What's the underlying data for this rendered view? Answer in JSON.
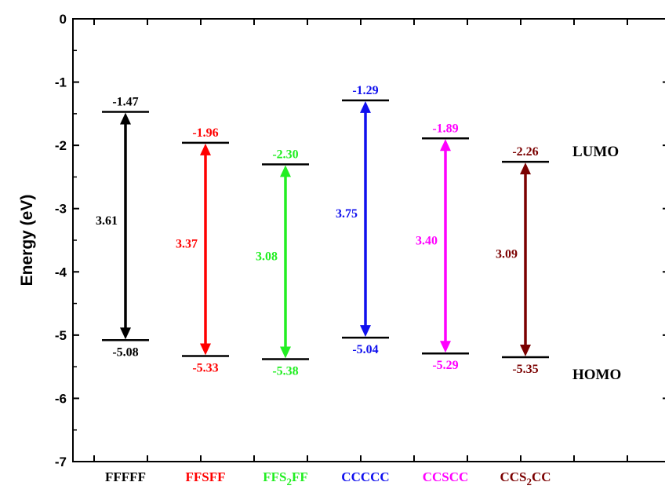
{
  "chart_data": {
    "type": "energy-level-diagram",
    "ylabel": "Energy (eV)",
    "ylim": [
      -7,
      0
    ],
    "yticks": [
      "0",
      "-1",
      "-2",
      "-3",
      "-4",
      "-5",
      "-6",
      "-7"
    ],
    "side_labels": {
      "lumo": "LUMO",
      "homo": "HOMO"
    },
    "series": [
      {
        "name": "FFFFF",
        "name_main": "FFFFF",
        "name_sub": "",
        "name_tail": "",
        "lumo": -1.47,
        "homo": -5.08,
        "lumo_label": "-1.47",
        "homo_label": "-5.08",
        "gap_label": "3.61",
        "color": "#000000"
      },
      {
        "name": "FFSFF",
        "name_main": "FFSFF",
        "name_sub": "",
        "name_tail": "",
        "lumo": -1.96,
        "homo": -5.33,
        "lumo_label": "-1.96",
        "homo_label": "-5.33",
        "gap_label": "3.37",
        "color": "#ff0000"
      },
      {
        "name": "FFS2FF",
        "name_main": "FFS",
        "name_sub": "2",
        "name_tail": "FF",
        "lumo": -2.3,
        "homo": -5.38,
        "lumo_label": "-2.30",
        "homo_label": "-5.38",
        "gap_label": "3.08",
        "color": "#22ee22"
      },
      {
        "name": "CCCCC",
        "name_main": "CCCCC",
        "name_sub": "",
        "name_tail": "",
        "lumo": -1.29,
        "homo": -5.04,
        "lumo_label": "-1.29",
        "homo_label": "-5.04",
        "gap_label": "3.75",
        "color": "#1010ee"
      },
      {
        "name": "CCSCC",
        "name_main": "CCSCC",
        "name_sub": "",
        "name_tail": "",
        "lumo": -1.89,
        "homo": -5.29,
        "lumo_label": "-1.89",
        "homo_label": "-5.29",
        "gap_label": "3.40",
        "color": "#ff00ff"
      },
      {
        "name": "CCS2CC",
        "name_main": "CCS",
        "name_sub": "2",
        "name_tail": "CC",
        "lumo": -2.26,
        "homo": -5.35,
        "lumo_label": "-2.26",
        "homo_label": "-5.35",
        "gap_label": "3.09",
        "color": "#7b0000"
      }
    ]
  }
}
